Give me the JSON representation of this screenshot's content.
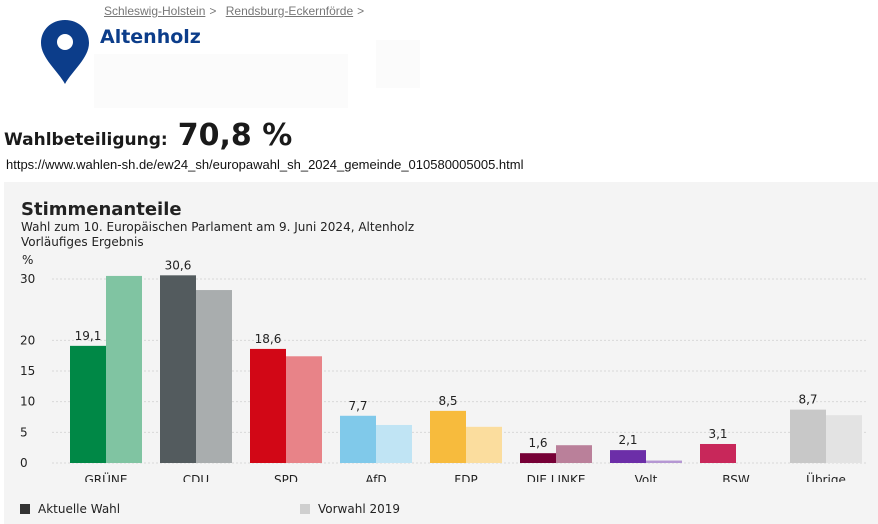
{
  "breadcrumb": {
    "items": [
      "Schleswig-Holstein",
      "Rendsburg-Eckernförde"
    ],
    "separator": ">"
  },
  "location": {
    "name": "Altenholz",
    "icon": "map-pin-icon",
    "icon_color": "#0c3d8a"
  },
  "turnout": {
    "label": "Wahlbeteiligung:",
    "value": "70,8 %"
  },
  "url": "https://www.wahlen-sh.de/ew24_sh/europawahl_sh_2024_gemeinde_010580005005.html",
  "chart_data": {
    "type": "bar",
    "title": "Stimmenanteile",
    "subtitle": "Wahl zum 10. Europäischen Parlament am 9. Juni 2024, Altenholz",
    "subtitle2": "Vorläufiges Ergebnis",
    "ylabel": "%",
    "ylim": [
      0,
      30
    ],
    "yticks": [
      0,
      5,
      10,
      15,
      20,
      30
    ],
    "grid": true,
    "legend_position": "bottom",
    "categories": [
      "GRÜNE",
      "CDU",
      "SPD",
      "AfD",
      "FDP",
      "DIE LINKE",
      "Volt",
      "BSW",
      "Übrige"
    ],
    "series": [
      {
        "name": "Aktuelle Wahl",
        "legend_color": "#333333",
        "values": [
          19.1,
          30.6,
          18.6,
          7.7,
          8.5,
          1.6,
          2.1,
          3.1,
          8.7
        ],
        "labels": [
          "19,1",
          "30,6",
          "18,6",
          "7,7",
          "8,5",
          "1,6",
          "2,1",
          "3,1",
          "8,7"
        ],
        "colors": [
          "#008846",
          "#535b5e",
          "#d20716",
          "#80c9ea",
          "#f7bb3d",
          "#760036",
          "#6c2ea8",
          "#c8275a",
          "#c8c8c8"
        ]
      },
      {
        "name": "Vorwahl 2019",
        "legend_color": "#cfcfcf",
        "values": [
          30.5,
          28.2,
          17.4,
          6.2,
          5.9,
          2.9,
          0.4,
          null,
          7.8
        ],
        "colors": [
          "#80c4a2",
          "#a9adae",
          "#e88388",
          "#c0e4f4",
          "#fbdd9e",
          "#ba809a",
          "#b597d3",
          "#e393ad",
          "#e3e3e3"
        ]
      }
    ]
  }
}
